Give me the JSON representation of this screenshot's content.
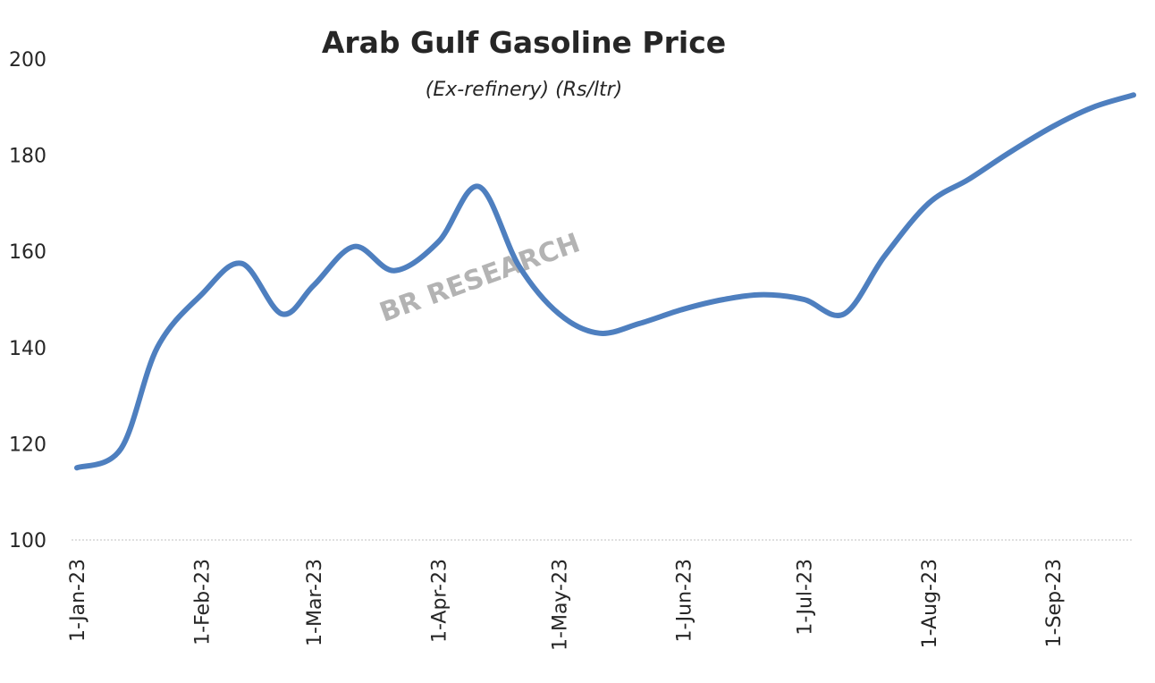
{
  "chart_data": {
    "type": "line",
    "title": "Arab Gulf Gasoline Price",
    "subtitle": "(Ex-refinery)  (Rs/ltr)",
    "watermark": "BR RESEARCH",
    "xlabel": "",
    "ylabel": "",
    "ylim": [
      100,
      200
    ],
    "y_ticks": [
      100,
      120,
      140,
      160,
      180,
      200
    ],
    "x_tick_labels": [
      "1-Jan-23",
      "1-Feb-23",
      "1-Mar-23",
      "1-Apr-23",
      "1-May-23",
      "1-Jun-23",
      "1-Jul-23",
      "1-Aug-23",
      "1-Sep-23"
    ],
    "grid": false,
    "legend": "none",
    "line_color": "#4e7fbf",
    "series": [
      {
        "x": [
          "2023-01-01",
          "2023-01-12",
          "2023-01-21",
          "2023-02-01",
          "2023-02-11",
          "2023-02-21",
          "2023-03-01",
          "2023-03-11",
          "2023-03-21",
          "2023-04-01",
          "2023-04-11",
          "2023-04-21",
          "2023-05-01",
          "2023-05-11",
          "2023-05-21",
          "2023-06-01",
          "2023-06-11",
          "2023-06-21",
          "2023-07-01",
          "2023-07-11",
          "2023-07-21",
          "2023-08-01",
          "2023-08-11",
          "2023-08-21",
          "2023-09-01",
          "2023-09-11",
          "2023-09-21"
        ],
        "values": [
          115,
          119,
          140,
          151,
          157.5,
          147,
          153,
          161,
          156,
          162,
          173.5,
          157,
          147,
          143,
          145,
          148,
          150,
          151,
          150,
          147,
          159,
          170,
          175,
          180.5,
          186,
          190,
          192.5
        ]
      }
    ]
  }
}
